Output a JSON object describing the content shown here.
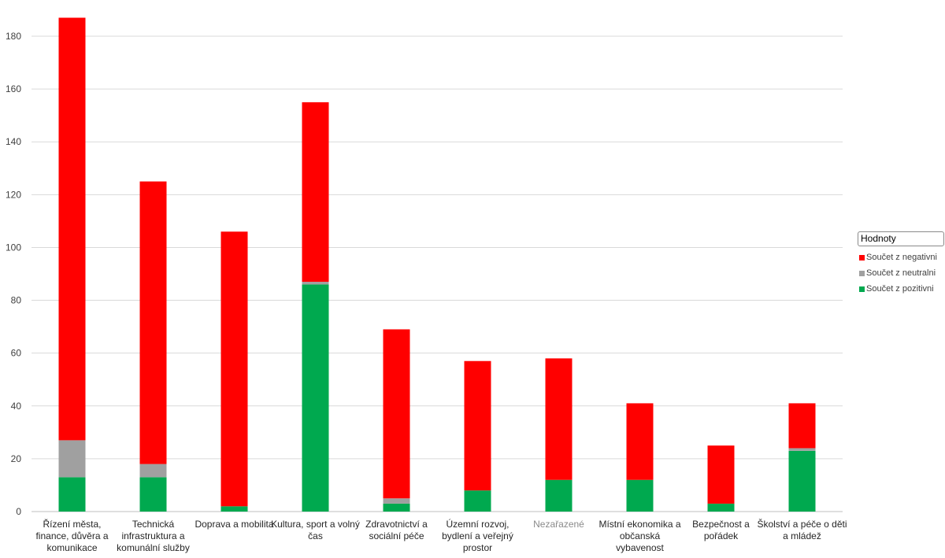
{
  "chart_data": {
    "type": "bar",
    "stacked": true,
    "categories": [
      "Řízení města, finance, důvěra a komunikace",
      "Technická infrastruktura a komunální služby",
      "Doprava a mobilita",
      "Kultura, sport a volný čas",
      "Zdravotnictví a sociální péče",
      "Územní rozvoj, bydlení a veřejný prostor",
      "Nezařazené",
      "Místní ekonomika a občanská vybavenost",
      "Bezpečnost a pořádek",
      "Školství a péče o děti a mládež"
    ],
    "category_lines": [
      [
        "Řízení města,",
        "finance, důvěra a",
        "komunikace"
      ],
      [
        "Technická",
        "infrastruktura a",
        "komunální služby"
      ],
      [
        "Doprava a mobilita"
      ],
      [
        "Kultura, sport a volný",
        "čas"
      ],
      [
        "Zdravotnictví a",
        "sociální péče"
      ],
      [
        "Územní rozvoj,",
        "bydlení a veřejný",
        "prostor"
      ],
      [
        "Nezařazené"
      ],
      [
        "Místní ekonomika a",
        "občanská",
        "vybavenost"
      ],
      [
        "Bezpečnost a",
        "pořádek"
      ],
      [
        "Školství a péče o děti",
        "a mládež"
      ]
    ],
    "muted_categories": [
      6
    ],
    "series": [
      {
        "name": "Součet z pozitivni",
        "color": "#00a94f",
        "values": [
          13,
          13,
          2,
          86,
          3,
          8,
          12,
          12,
          3,
          23
        ]
      },
      {
        "name": "Součet z neutralni",
        "color": "#a0a0a0",
        "values": [
          14,
          5,
          0,
          1,
          2,
          0,
          0,
          0,
          0,
          1
        ]
      },
      {
        "name": "Součet z negativni",
        "color": "#ff0000",
        "values": [
          160,
          107,
          104,
          68,
          64,
          49,
          46,
          29,
          22,
          17
        ]
      }
    ],
    "ylim": [
      0,
      180
    ],
    "yticks": [
      0,
      20,
      40,
      60,
      80,
      100,
      120,
      140,
      160,
      180
    ],
    "grid": true,
    "legend_position": "right",
    "title": "",
    "xlabel": "",
    "ylabel": ""
  },
  "legend": {
    "title": "Hodnoty",
    "items": [
      {
        "label": "Součet z negativni",
        "color": "#ff0000"
      },
      {
        "label": "Součet z neutralni",
        "color": "#a0a0a0"
      },
      {
        "label": "Součet z pozitivni",
        "color": "#00a94f"
      }
    ]
  }
}
